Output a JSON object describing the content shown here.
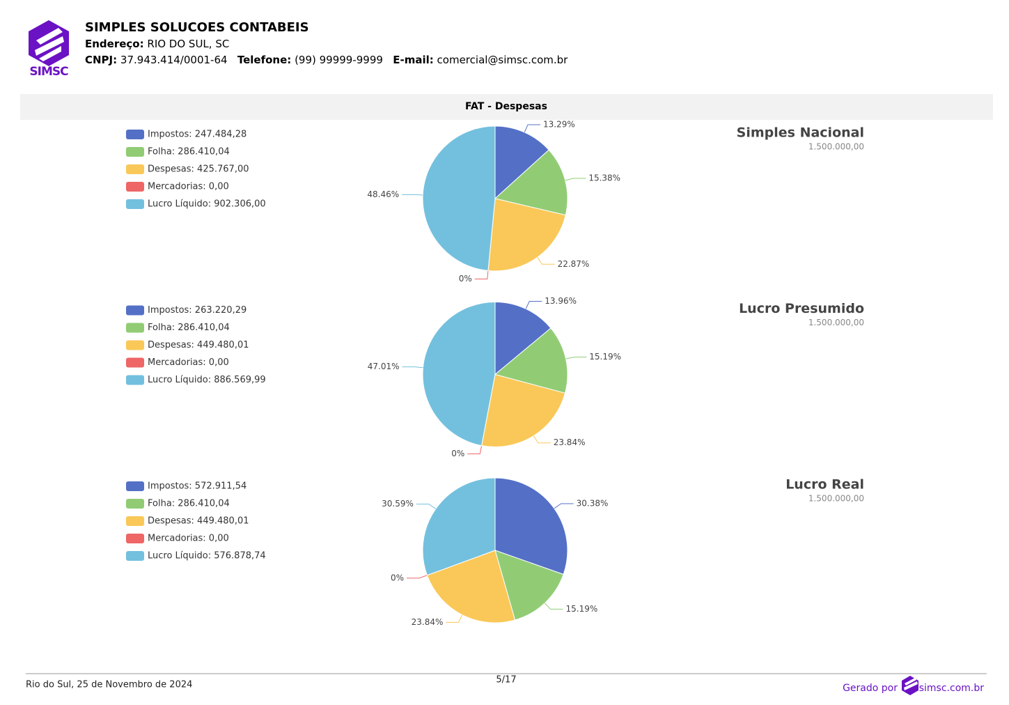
{
  "header": {
    "logo_text": "SIMSC",
    "company": "SIMPLES SOLUCOES CONTABEIS",
    "address_label": "Endereço:",
    "address": "RIO DO SUL, SC",
    "cnpj_label": "CNPJ:",
    "cnpj": "37.943.414/0001-64",
    "phone_label": "Telefone:",
    "phone": "(99) 99999-9999",
    "email_label": "E-mail:",
    "email": "comercial@simsc.com.br"
  },
  "section_title": "FAT - Despesas",
  "chart_data": [
    {
      "type": "pie",
      "title": "Simples Nacional",
      "subtitle": "1.500.000,00",
      "categories": [
        "Impostos: 247.484,28",
        "Folha: 286.410,04",
        "Despesas: 425.767,00",
        "Mercadorias: 0,00",
        "Lucro Líquido: 902.306,00"
      ],
      "values": [
        13.29,
        15.38,
        22.87,
        0,
        48.46
      ],
      "value_labels": [
        "13.29%",
        "15.38%",
        "22.87%",
        "0%",
        "48.46%"
      ],
      "colors": [
        "#5470c6",
        "#91cc75",
        "#fac858",
        "#ee6666",
        "#73c0de"
      ]
    },
    {
      "type": "pie",
      "title": "Lucro Presumido",
      "subtitle": "1.500.000,00",
      "categories": [
        "Impostos: 263.220,29",
        "Folha: 286.410,04",
        "Despesas: 449.480,01",
        "Mercadorias: 0,00",
        "Lucro Líquido: 886.569,99"
      ],
      "values": [
        13.96,
        15.19,
        23.84,
        0,
        47.01
      ],
      "value_labels": [
        "13.96%",
        "15.19%",
        "23.84%",
        "0%",
        "47.01%"
      ],
      "colors": [
        "#5470c6",
        "#91cc75",
        "#fac858",
        "#ee6666",
        "#73c0de"
      ]
    },
    {
      "type": "pie",
      "title": "Lucro Real",
      "subtitle": "1.500.000,00",
      "categories": [
        "Impostos: 572.911,54",
        "Folha: 286.410,04",
        "Despesas: 449.480,01",
        "Mercadorias: 0,00",
        "Lucro Líquido: 576.878,74"
      ],
      "values": [
        30.38,
        15.19,
        23.84,
        0,
        30.59
      ],
      "value_labels": [
        "30.38%",
        "15.19%",
        "23.84%",
        "0%",
        "30.59%"
      ],
      "colors": [
        "#5470c6",
        "#91cc75",
        "#fac858",
        "#ee6666",
        "#73c0de"
      ]
    }
  ],
  "footer": {
    "place_date": "Rio do Sul, 25 de Novembro de 2024",
    "page": "5/17",
    "generated_by": "Gerado por",
    "site": "simsc.com.br"
  }
}
